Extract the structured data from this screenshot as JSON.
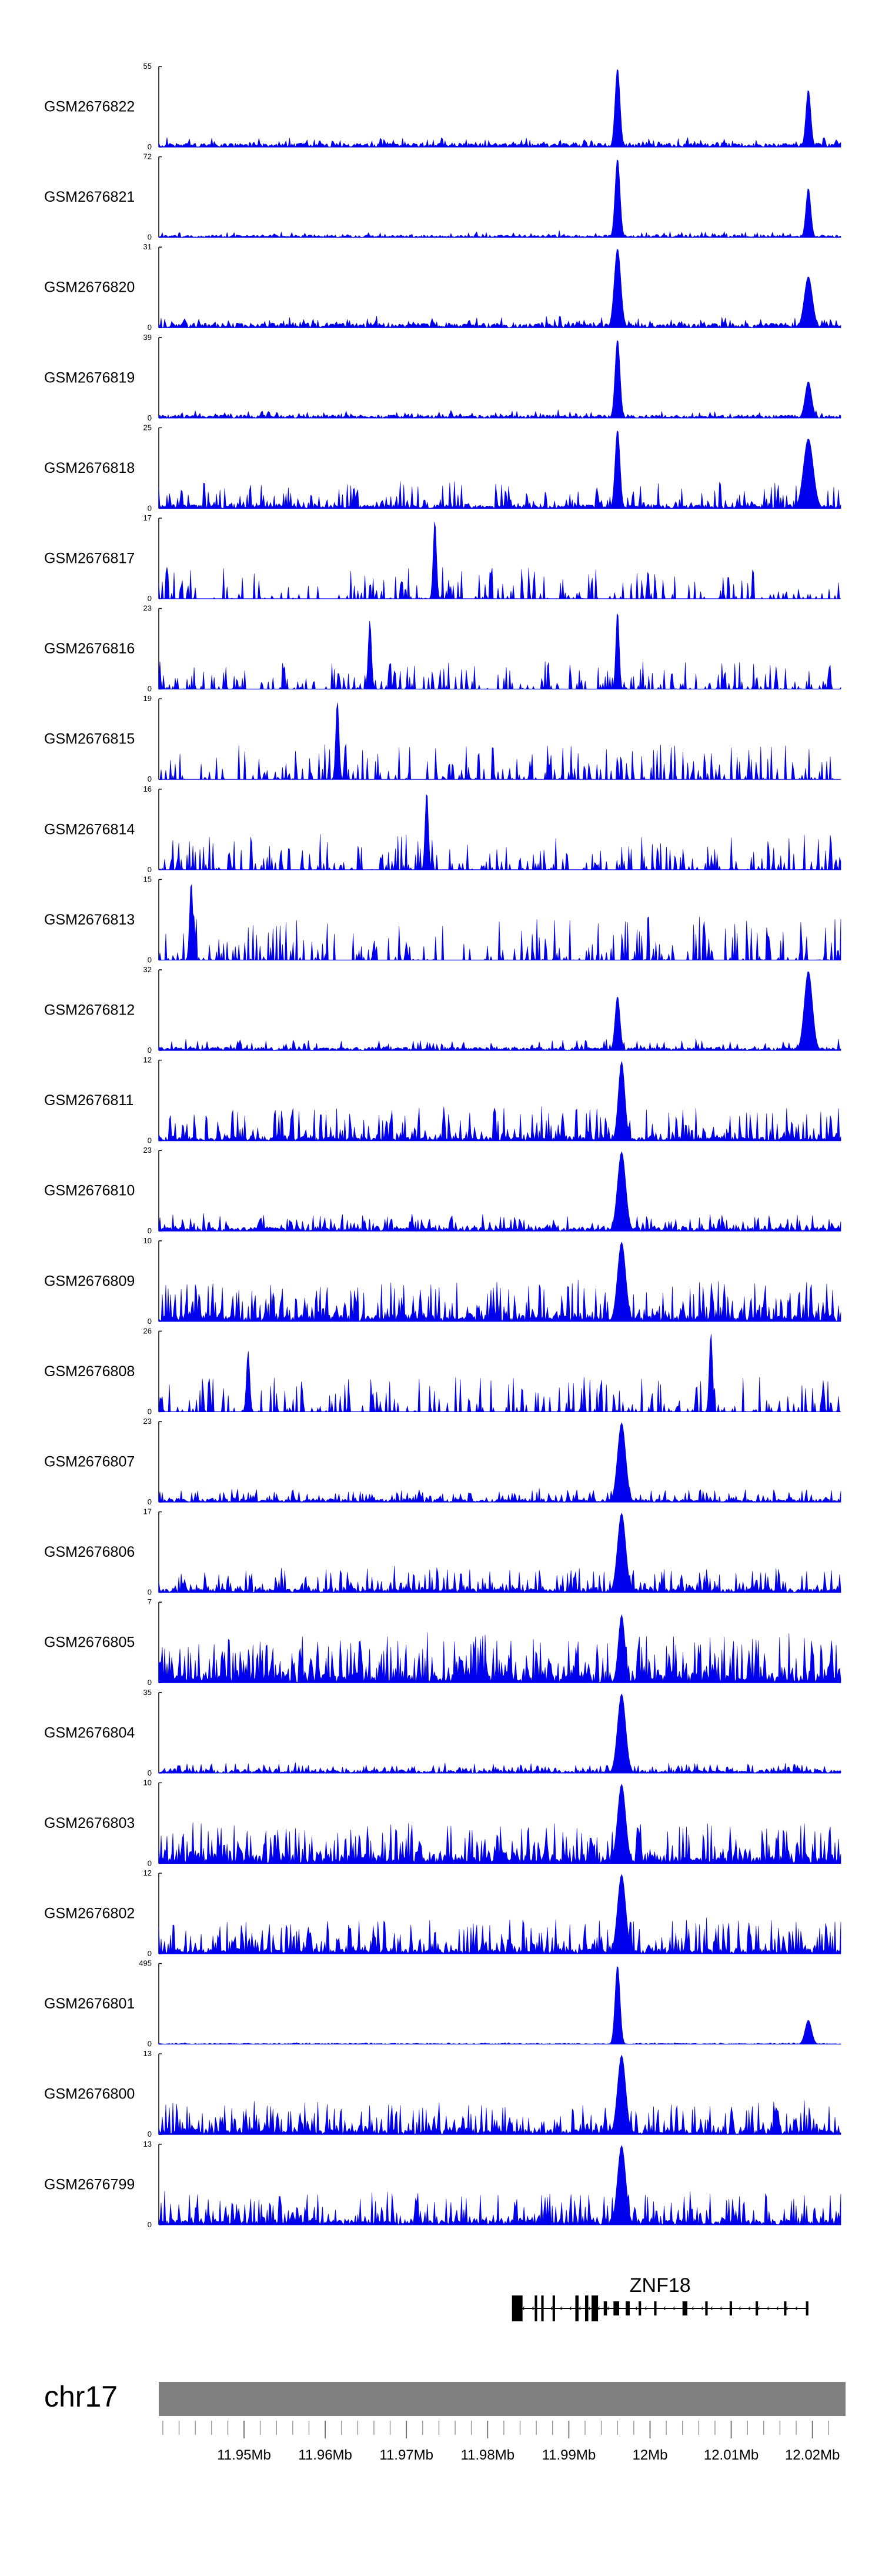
{
  "chart_data": {
    "type": "area",
    "title": "",
    "chromosome": "chr17",
    "xlim": [
      11.9395,
      12.0235
    ],
    "x_unit": "Mb",
    "ticks": [
      {
        "x": 11.95,
        "label": "11.95Mb"
      },
      {
        "x": 11.96,
        "label": "11.96Mb"
      },
      {
        "x": 11.97,
        "label": "11.97Mb"
      },
      {
        "x": 11.98,
        "label": "11.98Mb"
      },
      {
        "x": 11.99,
        "label": "11.99Mb"
      },
      {
        "x": 12.0,
        "label": "12Mb"
      },
      {
        "x": 12.01,
        "label": "12.01Mb"
      },
      {
        "x": 12.02,
        "label": "12.02Mb"
      }
    ],
    "minor_tick_step_mb": 0.002,
    "fill_color": "#0000ee",
    "tracks": [
      {
        "name": "GSM2676822",
        "ymax": 55,
        "ymin": 0,
        "baseline": 0.05,
        "density": 0.3,
        "noise": 0.08,
        "peaks": [
          {
            "x": 11.996,
            "y": 55,
            "w": 0.0003
          },
          {
            "x": 12.0195,
            "y": 40,
            "w": 0.0003
          }
        ],
        "seed": 1
      },
      {
        "name": "GSM2676821",
        "ymax": 72,
        "ymin": 0,
        "baseline": 0.03,
        "density": 0.3,
        "noise": 0.06,
        "peaks": [
          {
            "x": 11.996,
            "y": 72,
            "w": 0.0003
          },
          {
            "x": 12.0195,
            "y": 45,
            "w": 0.0003
          }
        ],
        "seed": 2
      },
      {
        "name": "GSM2676820",
        "ymax": 31,
        "ymin": 0,
        "baseline": 0.06,
        "density": 0.35,
        "noise": 0.1,
        "peaks": [
          {
            "x": 11.996,
            "y": 31,
            "w": 0.0004
          },
          {
            "x": 12.0195,
            "y": 20,
            "w": 0.0005
          }
        ],
        "seed": 3
      },
      {
        "name": "GSM2676819",
        "ymax": 39,
        "ymin": 0,
        "baseline": 0.04,
        "density": 0.3,
        "noise": 0.07,
        "peaks": [
          {
            "x": 11.996,
            "y": 39,
            "w": 0.0003
          },
          {
            "x": 12.0195,
            "y": 18,
            "w": 0.0004
          }
        ],
        "seed": 4
      },
      {
        "name": "GSM2676818",
        "ymax": 25,
        "ymin": 0,
        "baseline": 0.05,
        "density": 0.45,
        "noise": 0.3,
        "peaks": [
          {
            "x": 11.996,
            "y": 25,
            "w": 0.0003
          },
          {
            "x": 12.0195,
            "y": 22,
            "w": 0.0006
          }
        ],
        "seed": 5
      },
      {
        "name": "GSM2676817",
        "ymax": 17,
        "ymin": 0,
        "baseline": 0.0,
        "density": 0.35,
        "noise": 0.4,
        "peaks": [
          {
            "x": 11.9735,
            "y": 17,
            "w": 0.0002
          }
        ],
        "seed": 6
      },
      {
        "name": "GSM2676816",
        "ymax": 23,
        "ymin": 0,
        "baseline": 0.0,
        "density": 0.4,
        "noise": 0.35,
        "peaks": [
          {
            "x": 11.996,
            "y": 23,
            "w": 0.0002
          },
          {
            "x": 11.9655,
            "y": 20,
            "w": 0.0002
          }
        ],
        "seed": 7
      },
      {
        "name": "GSM2676815",
        "ymax": 19,
        "ymin": 0,
        "baseline": 0.0,
        "density": 0.35,
        "noise": 0.45,
        "peaks": [
          {
            "x": 11.9615,
            "y": 19,
            "w": 0.0002
          }
        ],
        "seed": 8
      },
      {
        "name": "GSM2676814",
        "ymax": 16,
        "ymin": 0,
        "baseline": 0.0,
        "density": 0.4,
        "noise": 0.45,
        "peaks": [
          {
            "x": 11.9725,
            "y": 16,
            "w": 0.0002
          }
        ],
        "seed": 9
      },
      {
        "name": "GSM2676813",
        "ymax": 15,
        "ymin": 0,
        "baseline": 0.0,
        "density": 0.4,
        "noise": 0.55,
        "peaks": [
          {
            "x": 11.9435,
            "y": 15,
            "w": 0.0002
          }
        ],
        "seed": 10
      },
      {
        "name": "GSM2676812",
        "ymax": 32,
        "ymin": 0,
        "baseline": 0.04,
        "density": 0.35,
        "noise": 0.12,
        "peaks": [
          {
            "x": 11.996,
            "y": 22,
            "w": 0.0003
          },
          {
            "x": 12.0195,
            "y": 32,
            "w": 0.0005
          }
        ],
        "seed": 11
      },
      {
        "name": "GSM2676811",
        "ymax": 12,
        "ymin": 0,
        "baseline": 0.05,
        "density": 0.55,
        "noise": 0.4,
        "peaks": [
          {
            "x": 11.9965,
            "y": 12,
            "w": 0.0004
          }
        ],
        "seed": 12
      },
      {
        "name": "GSM2676810",
        "ymax": 23,
        "ymin": 0,
        "baseline": 0.05,
        "density": 0.55,
        "noise": 0.18,
        "peaks": [
          {
            "x": 11.9965,
            "y": 23,
            "w": 0.0005
          }
        ],
        "seed": 13
      },
      {
        "name": "GSM2676809",
        "ymax": 10,
        "ymin": 0,
        "baseline": 0.08,
        "density": 0.65,
        "noise": 0.45,
        "peaks": [
          {
            "x": 11.9965,
            "y": 10,
            "w": 0.0005
          }
        ],
        "seed": 14
      },
      {
        "name": "GSM2676808",
        "ymax": 26,
        "ymin": 0,
        "baseline": 0.0,
        "density": 0.4,
        "noise": 0.45,
        "peaks": [
          {
            "x": 12.0075,
            "y": 26,
            "w": 0.0002
          },
          {
            "x": 11.9505,
            "y": 20,
            "w": 0.0002
          }
        ],
        "seed": 15
      },
      {
        "name": "GSM2676807",
        "ymax": 23,
        "ymin": 0,
        "baseline": 0.04,
        "density": 0.45,
        "noise": 0.14,
        "peaks": [
          {
            "x": 11.9965,
            "y": 23,
            "w": 0.0005
          }
        ],
        "seed": 16
      },
      {
        "name": "GSM2676806",
        "ymax": 17,
        "ymin": 0,
        "baseline": 0.05,
        "density": 0.55,
        "noise": 0.3,
        "peaks": [
          {
            "x": 11.9965,
            "y": 17,
            "w": 0.0005
          }
        ],
        "seed": 17
      },
      {
        "name": "GSM2676805",
        "ymax": 7,
        "ymin": 0,
        "baseline": 0.1,
        "density": 0.8,
        "noise": 0.55,
        "peaks": [
          {
            "x": 11.9965,
            "y": 6,
            "w": 0.0004
          }
        ],
        "seed": 18
      },
      {
        "name": "GSM2676804",
        "ymax": 35,
        "ymin": 0,
        "baseline": 0.04,
        "density": 0.45,
        "noise": 0.1,
        "peaks": [
          {
            "x": 11.9965,
            "y": 35,
            "w": 0.0005
          }
        ],
        "seed": 19
      },
      {
        "name": "GSM2676803",
        "ymax": 10,
        "ymin": 0,
        "baseline": 0.08,
        "density": 0.7,
        "noise": 0.45,
        "peaks": [
          {
            "x": 11.9965,
            "y": 10,
            "w": 0.0005
          }
        ],
        "seed": 20
      },
      {
        "name": "GSM2676802",
        "ymax": 12,
        "ymin": 0,
        "baseline": 0.06,
        "density": 0.65,
        "noise": 0.4,
        "peaks": [
          {
            "x": 11.9965,
            "y": 12,
            "w": 0.0005
          }
        ],
        "seed": 21
      },
      {
        "name": "GSM2676801",
        "ymax": 495,
        "ymin": 0,
        "baseline": 0.01,
        "density": 0.2,
        "noise": 0.01,
        "peaks": [
          {
            "x": 11.996,
            "y": 495,
            "w": 0.0003
          },
          {
            "x": 12.0195,
            "y": 150,
            "w": 0.0004
          }
        ],
        "seed": 22
      },
      {
        "name": "GSM2676800",
        "ymax": 13,
        "ymin": 0,
        "baseline": 0.06,
        "density": 0.65,
        "noise": 0.38,
        "peaks": [
          {
            "x": 11.9965,
            "y": 13,
            "w": 0.0005
          }
        ],
        "seed": 23
      },
      {
        "name": "GSM2676799",
        "ymax": 13,
        "ymin": 0,
        "baseline": 0.06,
        "density": 0.65,
        "noise": 0.38,
        "peaks": [
          {
            "x": 11.9965,
            "y": 13,
            "w": 0.0005
          }
        ],
        "seed": 24
      }
    ],
    "gene": {
      "name": "ZNF18",
      "start": 11.983,
      "end": 12.0195,
      "exons": [
        {
          "s": 11.983,
          "e": 11.9843,
          "tall": true
        },
        {
          "s": 11.9858,
          "e": 11.9861,
          "tall": true
        },
        {
          "s": 11.9866,
          "e": 11.9869,
          "tall": true
        },
        {
          "s": 11.988,
          "e": 11.9883,
          "tall": true
        },
        {
          "s": 11.9908,
          "e": 11.9912,
          "tall": true
        },
        {
          "s": 11.992,
          "e": 11.9924,
          "tall": true
        },
        {
          "s": 11.9928,
          "e": 11.9936,
          "tall": true
        },
        {
          "s": 11.9943,
          "e": 11.9947,
          "tall": false
        },
        {
          "s": 11.9955,
          "e": 11.9962,
          "tall": false
        },
        {
          "s": 11.997,
          "e": 11.9975,
          "tall": false
        },
        {
          "s": 11.9986,
          "e": 11.9989,
          "tall": false
        },
        {
          "s": 12.0005,
          "e": 12.0008,
          "tall": false
        },
        {
          "s": 12.004,
          "e": 12.0046,
          "tall": false
        },
        {
          "s": 12.0068,
          "e": 12.0071,
          "tall": false
        },
        {
          "s": 12.0098,
          "e": 12.0101,
          "tall": false
        },
        {
          "s": 12.013,
          "e": 12.0133,
          "tall": false
        },
        {
          "s": 12.0165,
          "e": 12.0168,
          "tall": false
        },
        {
          "s": 12.0192,
          "e": 12.0195,
          "tall": false
        }
      ]
    }
  }
}
